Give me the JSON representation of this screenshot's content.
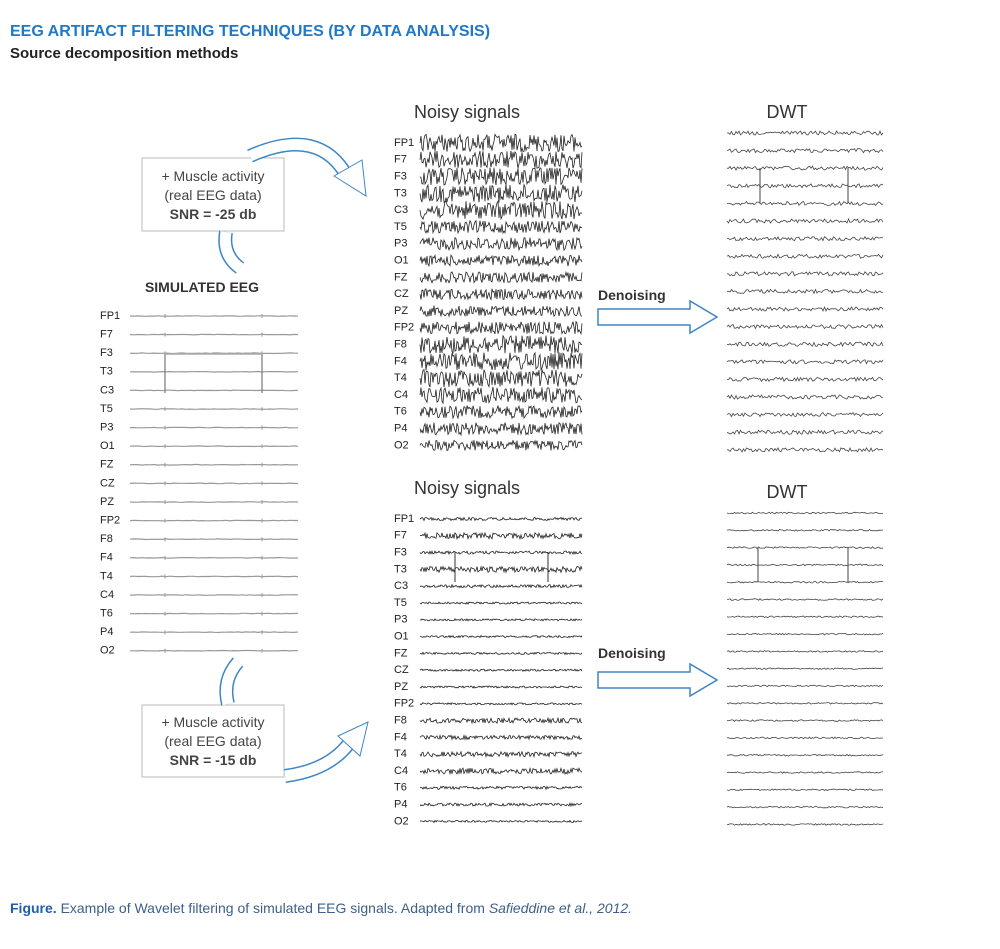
{
  "header": {
    "title": "EEG ARTIFACT FILTERING TECHNIQUES (BY DATA ANALYSIS)",
    "subtitle": "Source decomposition methods"
  },
  "channels": [
    "FP1",
    "F7",
    "F3",
    "T3",
    "C3",
    "T5",
    "P3",
    "O1",
    "FZ",
    "CZ",
    "PZ",
    "FP2",
    "F8",
    "F4",
    "T4",
    "C4",
    "T6",
    "P4",
    "O2"
  ],
  "simulated": {
    "title": "SIMULATED EEG"
  },
  "top": {
    "box": {
      "line1": "+ Muscle activity",
      "line2": "(real EEG data)",
      "snr": "SNR = -25 db"
    },
    "noisy_title": "Noisy signals",
    "arrow_label": "Denoising",
    "result_title": "DWT"
  },
  "bottom": {
    "box": {
      "line1": "+ Muscle activity",
      "line2": "(real EEG data)",
      "snr": "SNR = -15 db"
    },
    "noisy_title": "Noisy signals",
    "arrow_label": "Denoising",
    "result_title": "DWT"
  },
  "caption": {
    "label": "Figure.",
    "text": "Example of Wavelet filtering of simulated EEG signals. Adapted from",
    "citation": "Safieddine et al., 2012."
  }
}
